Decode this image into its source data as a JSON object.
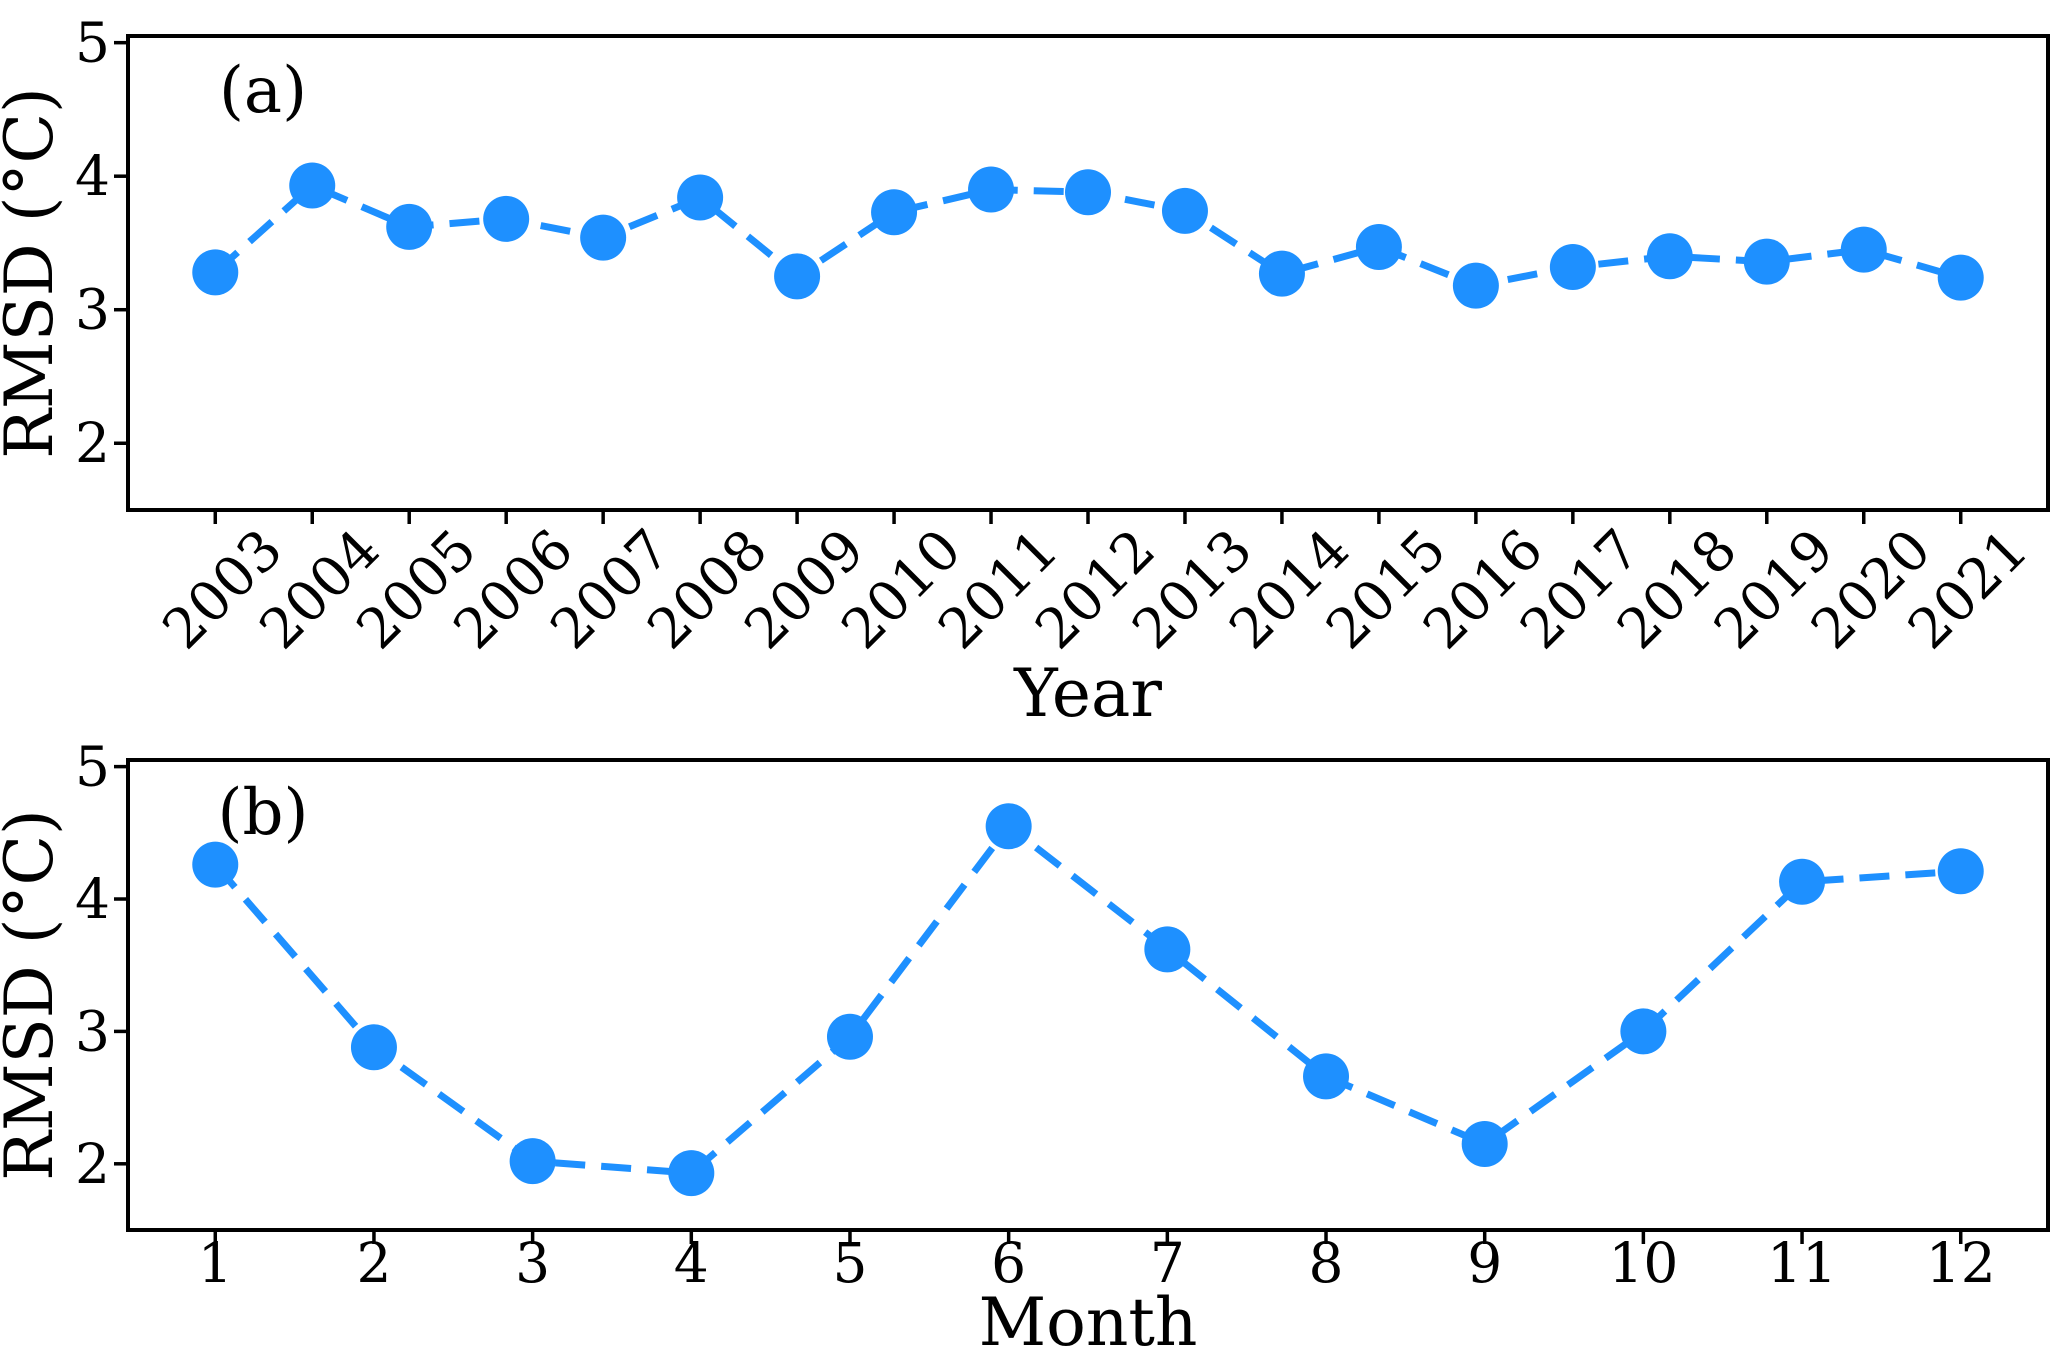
{
  "figure": {
    "background": "#ffffff"
  },
  "style": {
    "series_color": "#1E90FF",
    "axis_color": "#000000",
    "text_color": "#000000",
    "marker_radius": 23,
    "line_width": 7,
    "dash_pattern": "30 16",
    "spine_width": 4,
    "tick_length": 14,
    "tick_width": 3.5
  },
  "chart_data": [
    {
      "type": "line",
      "panel_label": "(a)",
      "title": "",
      "xlabel": "Year",
      "ylabel": "RMSD (°C)",
      "line_style": "dashed",
      "marker": "circle",
      "grid": false,
      "legend": null,
      "x": [
        2003,
        2004,
        2005,
        2006,
        2007,
        2008,
        2009,
        2010,
        2011,
        2012,
        2013,
        2014,
        2015,
        2016,
        2017,
        2018,
        2019,
        2020,
        2021
      ],
      "xtick_labels": [
        "2003",
        "2004",
        "2005",
        "2006",
        "2007",
        "2008",
        "2009",
        "2010",
        "2011",
        "2012",
        "2013",
        "2014",
        "2015",
        "2016",
        "2017",
        "2018",
        "2019",
        "2020",
        "2021"
      ],
      "xtick_rotation": 45,
      "values": [
        3.28,
        3.93,
        3.62,
        3.68,
        3.54,
        3.84,
        3.25,
        3.73,
        3.9,
        3.88,
        3.74,
        3.27,
        3.47,
        3.18,
        3.32,
        3.4,
        3.36,
        3.45,
        3.24
      ],
      "yticks": [
        2,
        3,
        4,
        5
      ],
      "ytick_labels": [
        "2",
        "3",
        "4",
        "5"
      ],
      "ylim": [
        1.5,
        5.05
      ],
      "xlim": [
        2002.1,
        2021.9
      ]
    },
    {
      "type": "line",
      "panel_label": "(b)",
      "title": "",
      "xlabel": "Month",
      "ylabel": "RMSD (°C)",
      "line_style": "dashed",
      "marker": "circle",
      "grid": false,
      "legend": null,
      "x": [
        1,
        2,
        3,
        4,
        5,
        6,
        7,
        8,
        9,
        10,
        11,
        12
      ],
      "xtick_labels": [
        "1",
        "2",
        "3",
        "4",
        "5",
        "6",
        "7",
        "8",
        "9",
        "10",
        "11",
        "12"
      ],
      "xtick_rotation": 0,
      "values": [
        4.26,
        2.88,
        2.02,
        1.93,
        2.96,
        4.55,
        3.62,
        2.66,
        2.15,
        3.0,
        4.13,
        4.21
      ],
      "yticks": [
        2,
        3,
        4,
        5
      ],
      "ytick_labels": [
        "2",
        "3",
        "4",
        "5"
      ],
      "ylim": [
        1.5,
        5.05
      ],
      "xlim": [
        0.45,
        12.55
      ]
    }
  ]
}
